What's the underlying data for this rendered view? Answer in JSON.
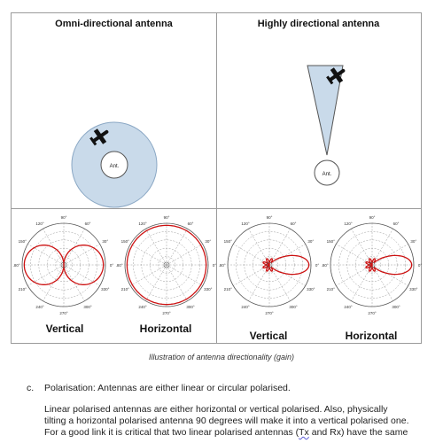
{
  "figure": {
    "left_title": "Omni-directional antenna",
    "right_title": "Highly directional antenna",
    "ant_label": "Ant.",
    "plots": [
      {
        "label": "Vertical",
        "pattern": "figure-eight"
      },
      {
        "label": "Horizontal",
        "pattern": "circle"
      },
      {
        "label": "Vertical",
        "pattern": "directional-lobe"
      },
      {
        "label": "Horizontal",
        "pattern": "directional-lobe"
      }
    ],
    "angle_labels": [
      "90°",
      "60°",
      "30°",
      "0°",
      "330°",
      "300°",
      "270°",
      "240°",
      "210°",
      "180°",
      "150°",
      "120°"
    ],
    "pattern_color": "#cc1111",
    "fill_color": "#c9daea"
  },
  "caption": "Illustration of antenna directionality (gain)",
  "item_c": {
    "marker": "c.",
    "text": "Polarisation: Antennas are either linear or circular polarised."
  },
  "paragraph": {
    "line1": "Linear polarised antennas are either horizontal or vertical polarised. Also, physically",
    "line2": "tilting a horizontal polarised antenna 90 degrees will make it into a vertical polarised one.",
    "line3_before": "For a good link it is critical that two linear polarised antennas (",
    "line3_tx": "Tx",
    "line3_after": " and Rx) have the same"
  }
}
